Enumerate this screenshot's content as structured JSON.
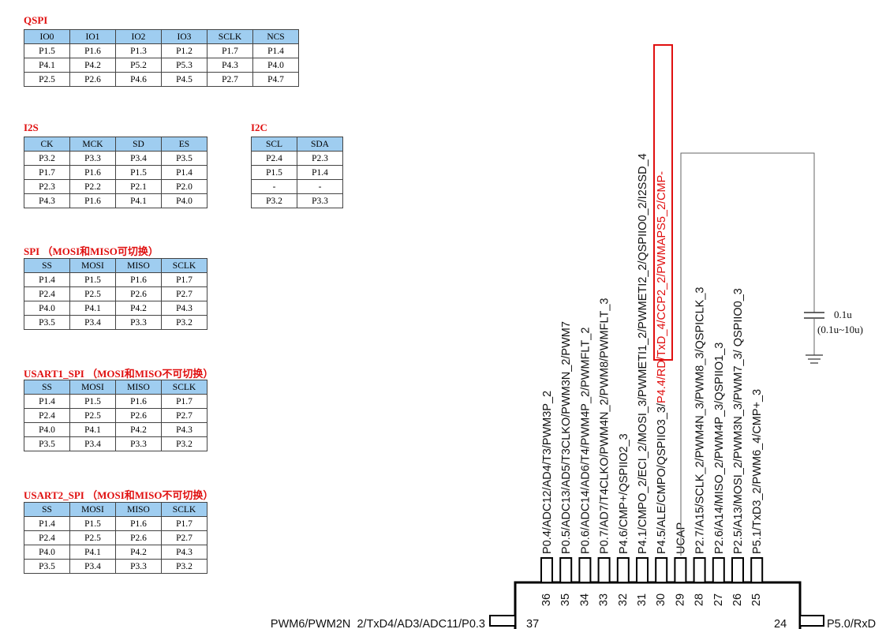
{
  "qspi": {
    "title": "QSPI",
    "headers": [
      "IO0",
      "IO1",
      "IO2",
      "IO3",
      "SCLK",
      "NCS"
    ],
    "rows": [
      [
        "P1.5",
        "P1.6",
        "P1.3",
        "P1.2",
        "P1.7",
        "P1.4"
      ],
      [
        "P4.1",
        "P4.2",
        "P5.2",
        "P5.3",
        "P4.3",
        "P4.0"
      ],
      [
        "P2.5",
        "P2.6",
        "P4.6",
        "P4.5",
        "P2.7",
        "P4.7"
      ]
    ]
  },
  "i2s": {
    "title": "I2S",
    "headers": [
      "CK",
      "MCK",
      "SD",
      "ES"
    ],
    "rows": [
      [
        "P3.2",
        "P3.3",
        "P3.4",
        "P3.5"
      ],
      [
        "P1.7",
        "P1.6",
        "P1.5",
        "P1.4"
      ],
      [
        "P2.3",
        "P2.2",
        "P2.1",
        "P2.0"
      ],
      [
        "P4.3",
        "P1.6",
        "P4.1",
        "P4.0"
      ]
    ]
  },
  "i2c": {
    "title": "I2C",
    "headers": [
      "SCL",
      "SDA"
    ],
    "rows": [
      [
        "P2.4",
        "P2.3"
      ],
      [
        "P1.5",
        "P1.4"
      ],
      [
        "-",
        "-"
      ],
      [
        "P3.2",
        "P3.3"
      ]
    ]
  },
  "spi": {
    "title": "SPI （MOSI和MISO可切换）",
    "headers": [
      "SS",
      "MOSI",
      "MISO",
      "SCLK"
    ],
    "rows": [
      [
        "P1.4",
        "P1.5",
        "P1.6",
        "P1.7"
      ],
      [
        "P2.4",
        "P2.5",
        "P2.6",
        "P2.7"
      ],
      [
        "P4.0",
        "P4.1",
        "P4.2",
        "P4.3"
      ],
      [
        "P3.5",
        "P3.4",
        "P3.3",
        "P3.2"
      ]
    ]
  },
  "usart1_spi": {
    "title": "USART1_SPI （MOSI和MISO不可切换）",
    "headers": [
      "SS",
      "MOSI",
      "MISO",
      "SCLK"
    ],
    "rows": [
      [
        "P1.4",
        "P1.5",
        "P1.6",
        "P1.7"
      ],
      [
        "P2.4",
        "P2.5",
        "P2.6",
        "P2.7"
      ],
      [
        "P4.0",
        "P4.1",
        "P4.2",
        "P4.3"
      ],
      [
        "P3.5",
        "P3.4",
        "P3.3",
        "P3.2"
      ]
    ]
  },
  "usart2_spi": {
    "title": "USART2_SPI （MOSI和MISO不可切换）",
    "headers": [
      "SS",
      "MOSI",
      "MISO",
      "SCLK"
    ],
    "rows": [
      [
        "P1.4",
        "P1.5",
        "P1.6",
        "P1.7"
      ],
      [
        "P2.4",
        "P2.5",
        "P2.6",
        "P2.7"
      ],
      [
        "P4.0",
        "P4.1",
        "P4.2",
        "P4.3"
      ],
      [
        "P3.5",
        "P3.4",
        "P3.3",
        "P3.2"
      ]
    ]
  },
  "chip": {
    "pins": [
      {
        "num": "36",
        "label": "P0.4/ADC12/AD4/T3/PWM3P_2",
        "highlight": false
      },
      {
        "num": "35",
        "label": "P0.5/ADC13/AD5/T3CLKO/PWM3N_2/PWM7",
        "highlight": false
      },
      {
        "num": "34",
        "label": "P0.6/ADC14/AD6/T4/PWM4P_2/PWMFLT_2",
        "highlight": false
      },
      {
        "num": "33",
        "label": "P0.7/AD7/T4CLKO/PWM4N_2/PWM8/PWMFLT_3",
        "highlight": false
      },
      {
        "num": "32",
        "label": "P4.6/CMP+/QSPIIO2_3",
        "highlight": false
      },
      {
        "num": "31",
        "label": "P4.1/CMPO_2/ECI_2/MOSI_3/PWMETI1_2/PWMETI2_2/QSPIIO0_2/I2SSD_4",
        "highlight": false
      },
      {
        "num": "30",
        "label": "P4.5/ALE/CMPO/QSPIIO3_3/",
        "red": "P4.4/RD/TxD_4/CCP2_2/PWMAPS5_2/CMP-",
        "highlight": true
      },
      {
        "num": "29",
        "label": "UCAP",
        "highlight": false
      },
      {
        "num": "28",
        "label": "P2.7/A15/SCLK_2/PWM4N_3/PWM8_3/QSPICLK_3",
        "highlight": false
      },
      {
        "num": "27",
        "label": "P2.6/A14/MISO_2/PWM4P_3/QSPIIO1_3",
        "highlight": false
      },
      {
        "num": "26",
        "label": "P2.5/A13/MOSI_2/PWM3N_3/PWM7_3/ QSPIIO0_3",
        "highlight": false
      },
      {
        "num": "25",
        "label": "P5.1/TxD3_2/PWM6_4/CMP+_3",
        "highlight": false
      }
    ],
    "left_pin": {
      "num": "37",
      "label": "PWM6/PWM2N_2/TxD4/AD3/ADC11/P0.3"
    },
    "right_pin": {
      "num": "24",
      "label": "P5.0/RxD"
    },
    "capacitor": {
      "value": "0.1u",
      "range": "(0.1u~10u)"
    }
  }
}
